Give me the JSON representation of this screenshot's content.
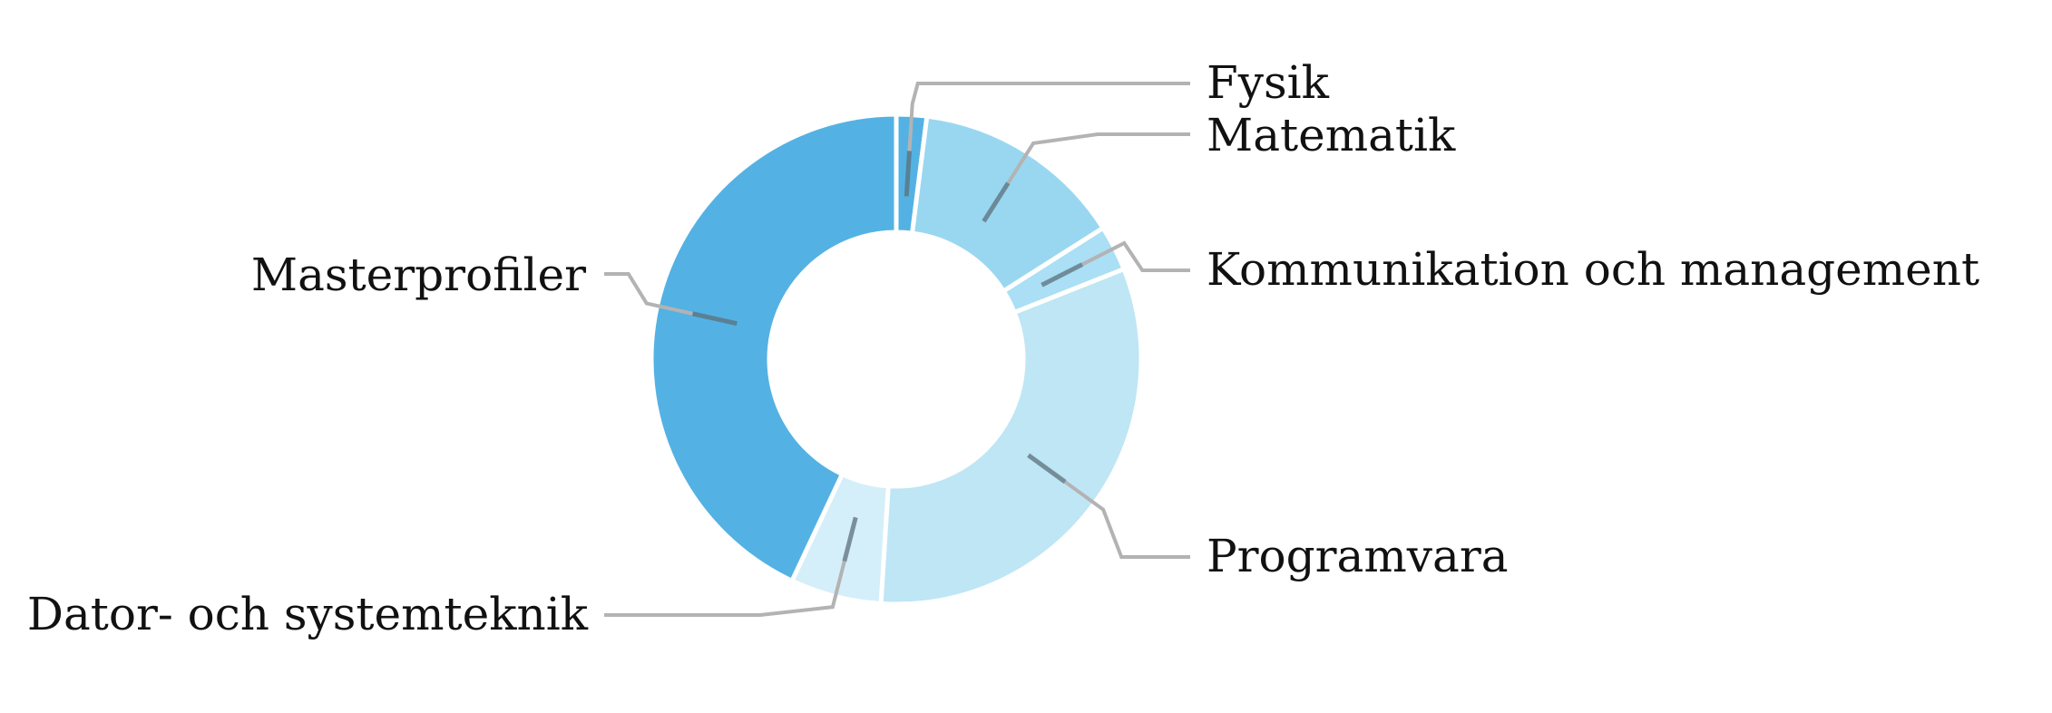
{
  "chart_data": {
    "type": "pie",
    "donut": true,
    "title": "",
    "slices": [
      {
        "label": "Fysik",
        "value": 2,
        "color": "#53b2e3"
      },
      {
        "label": "Matematik",
        "value": 14,
        "color": "#99d7f0"
      },
      {
        "label": "Kommunikation och management",
        "value": 3,
        "color": "#aadff5"
      },
      {
        "label": "Programvara",
        "value": 32,
        "color": "#bee6f5"
      },
      {
        "label": "Dator- och systemteknik",
        "value": 6,
        "color": "#d4eff9"
      },
      {
        "label": "Masterprofiler",
        "value": 43,
        "color": "#53b2e3"
      }
    ]
  }
}
